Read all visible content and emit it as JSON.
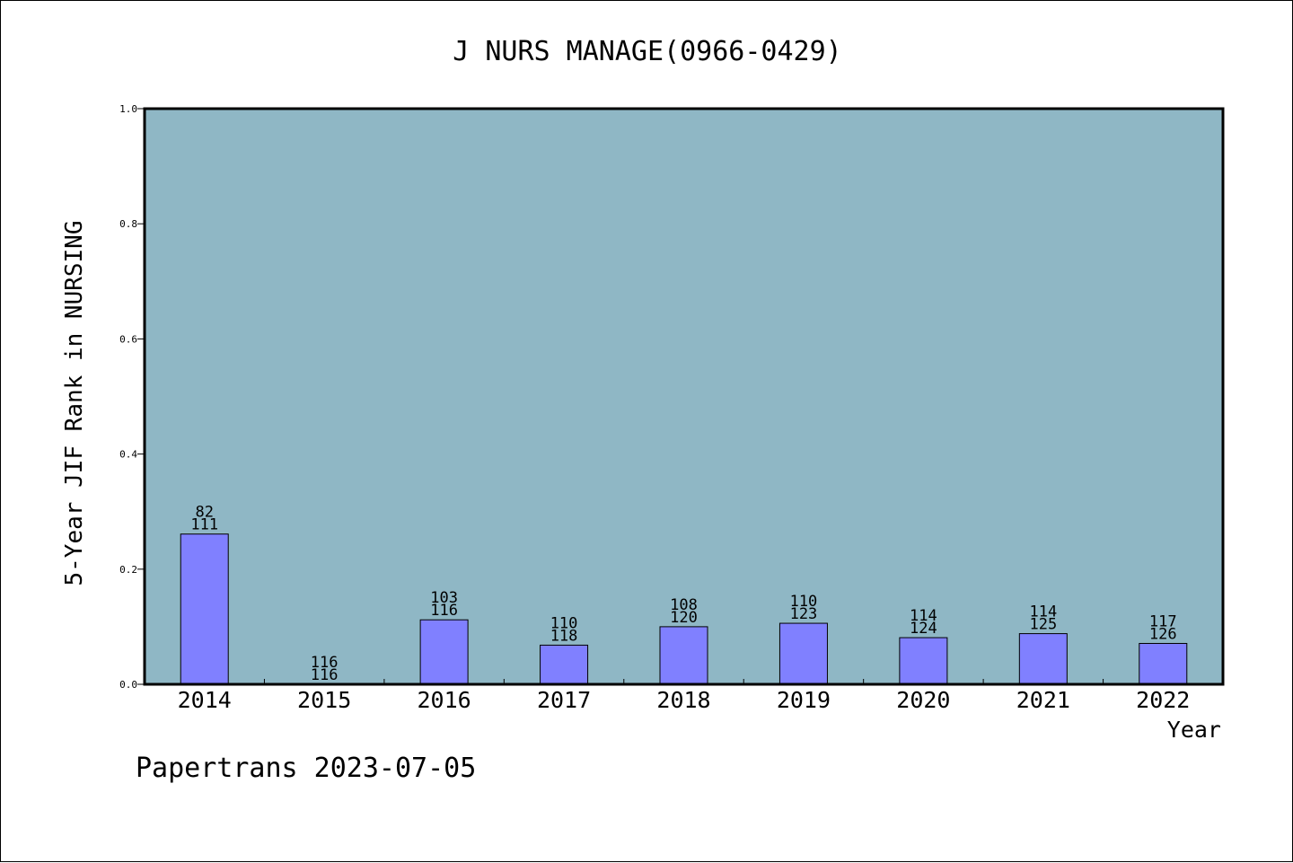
{
  "chart_data": {
    "type": "bar",
    "title": "J NURS MANAGE(0966-0429)",
    "xlabel": "Year",
    "ylabel": "5-Year JIF Rank in NURSING",
    "ylim": [
      0,
      1.0
    ],
    "yticks": [
      "0.0",
      "0.2",
      "0.4",
      "0.6",
      "0.8",
      "1.0"
    ],
    "ytick_values": [
      0,
      0.2,
      0.4,
      0.6,
      0.8,
      1.0
    ],
    "grid": false,
    "categories": [
      "2014",
      "2015",
      "2016",
      "2017",
      "2018",
      "2019",
      "2020",
      "2021",
      "2022"
    ],
    "values": [
      0.261,
      0.0,
      0.112,
      0.068,
      0.1,
      0.106,
      0.081,
      0.088,
      0.071
    ],
    "rank": [
      "82",
      "116",
      "103",
      "110",
      "108",
      "110",
      "114",
      "114",
      "117"
    ],
    "total": [
      "111",
      "116",
      "116",
      "118",
      "120",
      "123",
      "124",
      "125",
      "126"
    ],
    "colors": {
      "plot_background": "#8fb7c5",
      "bar_fill": "#8080ff",
      "bar_stroke": "#000000",
      "axis": "#000000"
    }
  },
  "footer": "Papertrans 2023-07-05"
}
